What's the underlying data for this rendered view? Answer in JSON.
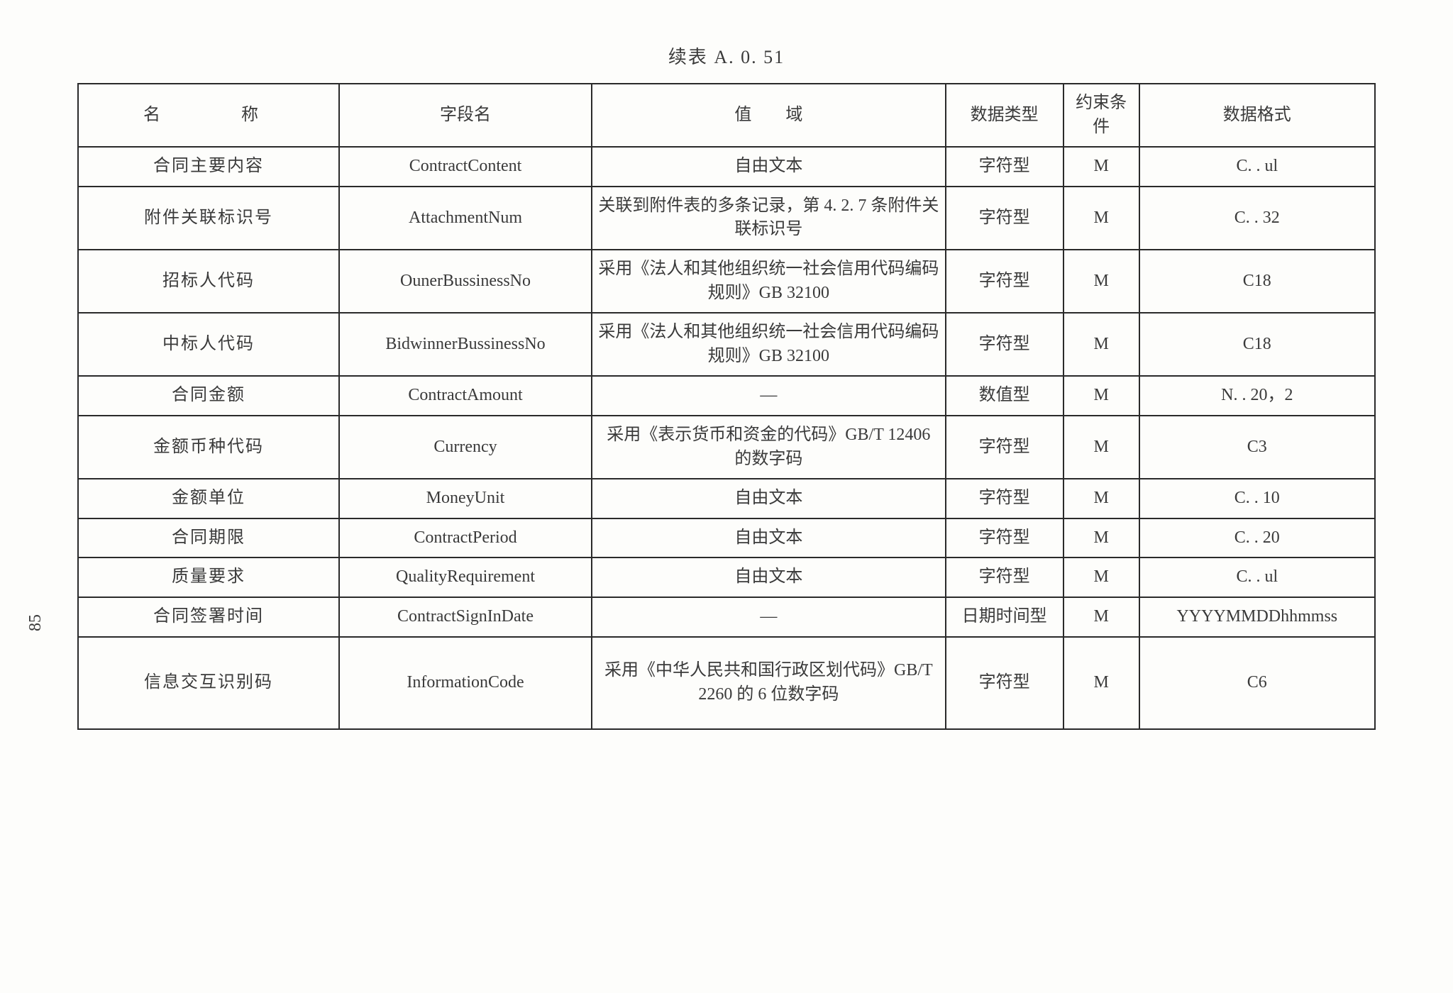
{
  "title": "续表 A. 0. 51",
  "pageNumber": "85",
  "table": {
    "headers": {
      "name": "名　　称",
      "field": "字段名",
      "range": "值　　域",
      "type": "数据类型",
      "constraint": "约束条件",
      "format": "数据格式"
    },
    "columnWidths": {
      "name": 310,
      "field": 300,
      "range": 420,
      "type": 140,
      "constraint": 90,
      "format": 280
    },
    "rows": [
      {
        "name": "合同主要内容",
        "field": "ContractContent",
        "range": "自由文本",
        "type": "字符型",
        "constraint": "M",
        "format": "C. . ul"
      },
      {
        "name": "附件关联标识号",
        "field": "AttachmentNum",
        "range": "关联到附件表的多条记录，第 4. 2. 7 条附件关联标识号",
        "type": "字符型",
        "constraint": "M",
        "format": "C. . 32"
      },
      {
        "name": "招标人代码",
        "field": "OunerBussinessNo",
        "range": "采用《法人和其他组织统一社会信用代码编码规则》GB 32100",
        "type": "字符型",
        "constraint": "M",
        "format": "C18"
      },
      {
        "name": "中标人代码",
        "field": "BidwinnerBussinessNo",
        "range": "采用《法人和其他组织统一社会信用代码编码规则》GB 32100",
        "type": "字符型",
        "constraint": "M",
        "format": "C18"
      },
      {
        "name": "合同金额",
        "field": "ContractAmount",
        "range": "—",
        "type": "数值型",
        "constraint": "M",
        "format": "N. . 20，2"
      },
      {
        "name": "金额币种代码",
        "field": "Currency",
        "range": "采用《表示货币和资金的代码》GB/T 12406 的数字码",
        "type": "字符型",
        "constraint": "M",
        "format": "C3"
      },
      {
        "name": "金额单位",
        "field": "MoneyUnit",
        "range": "自由文本",
        "type": "字符型",
        "constraint": "M",
        "format": "C. . 10"
      },
      {
        "name": "合同期限",
        "field": "ContractPeriod",
        "range": "自由文本",
        "type": "字符型",
        "constraint": "M",
        "format": "C. . 20"
      },
      {
        "name": "质量要求",
        "field": "QualityRequirement",
        "range": "自由文本",
        "type": "字符型",
        "constraint": "M",
        "format": "C. . ul"
      },
      {
        "name": "合同签署时间",
        "field": "ContractSignInDate",
        "range": "—",
        "type": "日期时间型",
        "constraint": "M",
        "format": "YYYYMMDDhhmmss"
      },
      {
        "name": "信息交互识别码",
        "field": "InformationCode",
        "range": "采用《中华人民共和国行政区划代码》GB/T 2260 的 6 位数字码",
        "type": "字符型",
        "constraint": "M",
        "format": "C6"
      }
    ]
  }
}
